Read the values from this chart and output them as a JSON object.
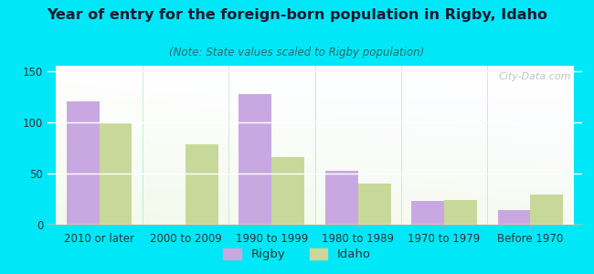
{
  "title": "Year of entry for the foreign-born population in Rigby, Idaho",
  "subtitle": "(Note: State values scaled to Rigby population)",
  "categories": [
    "2010 or later",
    "2000 to 2009",
    "1990 to 1999",
    "1980 to 1989",
    "1970 to 1979",
    "Before 1970"
  ],
  "rigby_values": [
    120,
    0,
    127,
    53,
    23,
    14
  ],
  "idaho_values": [
    99,
    78,
    66,
    40,
    24,
    29
  ],
  "rigby_color": "#c9a8e2",
  "idaho_color": "#c8d89a",
  "background_outer": "#00e8f8",
  "ylim": [
    0,
    155
  ],
  "yticks": [
    0,
    50,
    100,
    150
  ],
  "bar_width": 0.38,
  "title_fontsize": 11.5,
  "subtitle_fontsize": 8.5,
  "tick_fontsize": 8.5,
  "legend_fontsize": 9.5,
  "watermark": "City-Data.com"
}
